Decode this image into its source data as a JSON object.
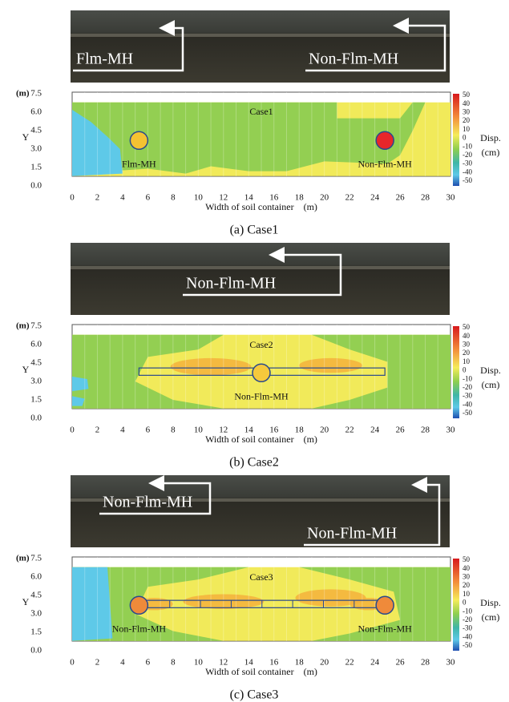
{
  "axes": {
    "y_unit": "(m)",
    "y_label": "Y",
    "x_label": "Width of soil container    (m)",
    "xticks": [
      "0",
      "2",
      "4",
      "6",
      "8",
      "10",
      "12",
      "14",
      "16",
      "18",
      "20",
      "22",
      "24",
      "26",
      "28",
      "30"
    ],
    "yticks": [
      "7.5",
      "6.0",
      "4.5",
      "3.0",
      "1.5",
      "0.0"
    ],
    "colorbar_ticks": [
      "50",
      "40",
      "30",
      "20",
      "10",
      "0",
      "-10",
      "-20",
      "-30",
      "-40",
      "-50"
    ],
    "colorbar_label": "Disp.",
    "colorbar_unit": "(cm)"
  },
  "panels": [
    {
      "photo_labels": [
        "Flm-MH",
        "Non-Flm-MH"
      ],
      "case": "Case1",
      "markers": [
        "Flm-MH",
        "Non-Flm-MH"
      ],
      "caption": "(a) Case1"
    },
    {
      "photo_labels": [
        "Non-Flm-MH"
      ],
      "case": "Case2",
      "markers": [
        "Non-Flm-MH"
      ],
      "caption": "(b) Case2"
    },
    {
      "photo_labels": [
        "Non-Flm-MH",
        "Non-Flm-MH"
      ],
      "case": "Case3",
      "markers": [
        "Non-Flm-MH",
        "Non-Flm-MH"
      ],
      "caption": "(c) Case3"
    }
  ]
}
